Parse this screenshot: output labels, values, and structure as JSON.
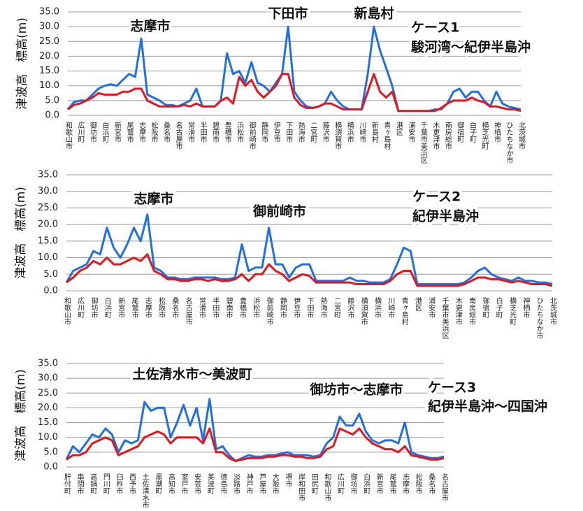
{
  "chart_data": [
    {
      "type": "line",
      "y_label": "津波高　標高(m)",
      "annotations": [
        "志摩市",
        "下田市",
        "新島村",
        "ケース1",
        "駿河湾～紀伊半島沖"
      ],
      "ylim": [
        0,
        35
      ],
      "yticks": [
        {
          "value": 0,
          "label": "0.0"
        },
        {
          "value": 5,
          "label": "5.0"
        },
        {
          "value": 10,
          "label": "10.0"
        },
        {
          "value": 15,
          "label": "15.0"
        },
        {
          "value": 20,
          "label": "20.0"
        },
        {
          "value": 25,
          "label": "25.0"
        },
        {
          "value": 30,
          "label": "30.0"
        },
        {
          "value": 35,
          "label": "35.0"
        }
      ],
      "grid": true,
      "categories": [
        "和歌山市",
        null,
        "広川町",
        null,
        "御坊市",
        null,
        "白浜町",
        null,
        "新宮市",
        null,
        "尾鷲市",
        null,
        "志摩市",
        null,
        "松阪市",
        null,
        "桑名市",
        null,
        "名古屋市",
        null,
        "常滑市",
        null,
        "半田市",
        null,
        "碧南市",
        null,
        "豊橋市",
        null,
        "浜松市",
        null,
        "御前崎市",
        null,
        "静岡市",
        null,
        "伊豆市",
        null,
        "下田市",
        null,
        "熱海市",
        null,
        "二宮町",
        null,
        "藤沢市",
        null,
        "横須賀市",
        null,
        "横浜市",
        null,
        "川崎市",
        null,
        "新島村",
        null,
        "青ヶ島村",
        null,
        "港区",
        null,
        "浦安市",
        null,
        "千葉市美浜区",
        null,
        "木更津市",
        null,
        "南房総市",
        null,
        "御宿町",
        null,
        "白子町",
        null,
        "横芝光町",
        null,
        "神栖市",
        null,
        "ひたちなか市",
        null,
        "北茨城市"
      ],
      "series": [
        {
          "color": "#1f6fe8",
          "values": [
            2,
            4.5,
            5,
            5,
            7,
            9,
            10,
            10.5,
            10,
            12,
            14,
            13,
            26,
            7,
            6,
            5,
            3.5,
            3.5,
            3,
            4,
            5,
            9,
            3,
            3,
            3,
            5,
            21,
            14,
            15,
            11,
            18,
            11,
            10,
            8,
            11,
            14,
            30,
            8,
            5,
            3,
            2.5,
            3,
            4,
            8,
            5,
            3,
            2,
            2,
            2,
            14,
            30,
            22,
            16,
            10,
            1.5,
            1.5,
            1.5,
            1.5,
            1.5,
            1.5,
            2,
            2,
            4,
            8,
            9,
            6,
            8,
            8,
            5,
            3,
            8,
            4,
            3,
            2.5,
            2
          ]
        },
        {
          "color": "#e8141c",
          "values": [
            2,
            3.5,
            4,
            5,
            6,
            7.5,
            7,
            7,
            7,
            8,
            8,
            9,
            9,
            5,
            4,
            3,
            3,
            3,
            3,
            3.5,
            3,
            4,
            3,
            3,
            3,
            5,
            6,
            4,
            13,
            10,
            12,
            8,
            6,
            8,
            10,
            14,
            14,
            6,
            3.5,
            2.5,
            2.5,
            3,
            4,
            4,
            3,
            2,
            2,
            2,
            2,
            8,
            14,
            8,
            6,
            8,
            1.5,
            1.5,
            1.5,
            1.5,
            1.5,
            1.5,
            1.5,
            2.5,
            4,
            5,
            5,
            5,
            6,
            5,
            4.5,
            3,
            3,
            2.5,
            2,
            2,
            1.5
          ]
        }
      ]
    },
    {
      "type": "line",
      "y_label": "津波高　標高(m)",
      "annotations": [
        "志摩市",
        "御前崎市",
        "ケース2",
        "紀伊半島沖"
      ],
      "ylim": [
        0,
        35
      ],
      "yticks": [
        {
          "value": 0,
          "label": "0.0"
        },
        {
          "value": 5,
          "label": "5.0"
        },
        {
          "value": 10,
          "label": "10.0"
        },
        {
          "value": 15,
          "label": "15.0"
        },
        {
          "value": 20,
          "label": "20.0"
        },
        {
          "value": 25,
          "label": "25.0"
        },
        {
          "value": 30,
          "label": "30.0"
        },
        {
          "value": 35,
          "label": "35.0"
        }
      ],
      "grid": true,
      "categories": [
        "和歌山市",
        null,
        "広川町",
        null,
        "御坊市",
        null,
        "白浜町",
        null,
        "新宮市",
        null,
        "尾鷲市",
        null,
        "志摩市",
        null,
        "松阪市",
        null,
        "桑名市",
        null,
        "名古屋市",
        null,
        "常滑市",
        null,
        "半田市",
        null,
        "碧南市",
        null,
        "豊橋市",
        null,
        "浜松市",
        null,
        "御前崎市",
        null,
        "静岡市",
        null,
        "伊豆市",
        null,
        "下田市",
        null,
        "熱海市",
        null,
        "二宮町",
        null,
        "藤沢市",
        null,
        "横須賀市",
        null,
        "横浜市",
        null,
        "川崎市",
        null,
        "青ヶ島村",
        null,
        "港区",
        null,
        "浦安市",
        null,
        "千葉市美浜区",
        null,
        "木更津市",
        null,
        "南房総市",
        null,
        "御宿町",
        null,
        "白子町",
        null,
        "横芝光町",
        null,
        "神栖市",
        null,
        "ひたちなか市",
        null,
        "北茨城市"
      ],
      "series": [
        {
          "color": "#1f6fe8",
          "values": [
            2.5,
            6,
            7,
            8,
            12,
            11,
            19,
            13,
            10,
            14,
            19,
            15,
            23,
            7,
            6,
            4,
            4,
            3.5,
            3.5,
            4,
            4,
            4,
            4,
            3.5,
            3.5,
            4,
            14,
            6,
            7,
            7,
            19,
            8,
            8,
            4,
            7,
            8,
            8,
            3,
            3,
            3,
            3,
            3,
            4,
            3,
            3,
            2.5,
            2.5,
            2.5,
            3.5,
            8,
            13,
            12,
            2,
            2,
            2,
            2,
            2,
            2,
            2,
            2.5,
            4,
            6,
            7,
            5,
            4,
            3.5,
            3,
            4,
            3,
            3,
            2.5,
            2.5,
            2
          ]
        },
        {
          "color": "#e8141c",
          "values": [
            2.5,
            4,
            6,
            7,
            9,
            8,
            10,
            8,
            8,
            9,
            10,
            9,
            11,
            6,
            5,
            3.5,
            3.5,
            3,
            3,
            3.5,
            3.5,
            3,
            3.5,
            3,
            3,
            3.5,
            5,
            3,
            5,
            5,
            8,
            6,
            5,
            3,
            4,
            5,
            4.5,
            2.5,
            2.5,
            2.5,
            2.5,
            2.5,
            2.5,
            2,
            2,
            2,
            2,
            2,
            3,
            5,
            6,
            6,
            1.5,
            1.5,
            1.5,
            1.5,
            1.5,
            1.5,
            1.5,
            2,
            3,
            4,
            4,
            3.5,
            3.5,
            3,
            2.5,
            3,
            2.5,
            2,
            2,
            2,
            1.5
          ]
        }
      ]
    },
    {
      "type": "line",
      "y_label": "津波高　標高(m)",
      "annotations": [
        "土佐清水市～美波町",
        "御坊市～志摩市",
        "ケース3",
        "紀伊半島沖～四国沖"
      ],
      "ylim": [
        0,
        35
      ],
      "yticks": [
        {
          "value": 0,
          "label": "0.0"
        },
        {
          "value": 5,
          "label": "5.0"
        },
        {
          "value": 10,
          "label": "10.0"
        },
        {
          "value": 15,
          "label": "15.0"
        },
        {
          "value": 20,
          "label": "20.0"
        },
        {
          "value": 25,
          "label": "25.0"
        },
        {
          "value": 30,
          "label": "30.0"
        },
        {
          "value": 35,
          "label": "35.0"
        }
      ],
      "grid": true,
      "categories": [
        "肝付町",
        null,
        "串間市",
        null,
        "高鍋町",
        null,
        "門川町",
        null,
        "臼杵市",
        null,
        "西予市",
        null,
        "土佐清水市",
        null,
        "黒潮町",
        null,
        "高知市",
        null,
        "室戸市",
        null,
        "安芸市",
        null,
        "美波町",
        null,
        "徳島市",
        null,
        "淡路市",
        null,
        "神戸市",
        null,
        "芦屋市",
        null,
        "大阪市",
        null,
        "堺市",
        null,
        "岸和田市",
        null,
        "田尻町",
        null,
        "和歌山市",
        null,
        "広川町",
        null,
        "御坊市",
        null,
        "白浜町",
        null,
        "新宮市",
        null,
        "尾鷲市",
        null,
        "志摩市",
        null,
        "松阪市",
        null,
        "桑名市",
        null,
        "名古屋市"
      ],
      "series": [
        {
          "color": "#1f6fe8",
          "values": [
            2.5,
            7,
            5,
            8,
            11,
            10,
            13,
            11,
            5,
            9,
            8,
            9,
            22,
            19,
            20,
            20,
            10,
            15,
            21,
            14,
            20,
            9,
            23,
            6,
            7,
            4,
            2,
            3,
            4,
            3.5,
            3.5,
            4,
            4,
            4.5,
            5,
            4,
            4,
            4,
            3.5,
            4,
            8,
            10,
            17,
            14,
            14,
            18,
            12,
            9,
            8,
            9,
            9,
            8,
            15,
            5,
            4,
            3.5,
            3,
            3,
            3.5
          ]
        },
        {
          "color": "#e8141c",
          "values": [
            2.5,
            4,
            4,
            5,
            8,
            9,
            10,
            9,
            4,
            5,
            6,
            7,
            10,
            11,
            12,
            11,
            8,
            10,
            10,
            10,
            10,
            8,
            13,
            5,
            5,
            3,
            2,
            2.5,
            3,
            3,
            3,
            3.5,
            3.5,
            4,
            4,
            3.5,
            3.5,
            3,
            3,
            3.5,
            6,
            7,
            13,
            12,
            11,
            13,
            10,
            8,
            7,
            6,
            6,
            5,
            7,
            4,
            3.5,
            3,
            2.5,
            2.5,
            3
          ]
        }
      ]
    }
  ]
}
